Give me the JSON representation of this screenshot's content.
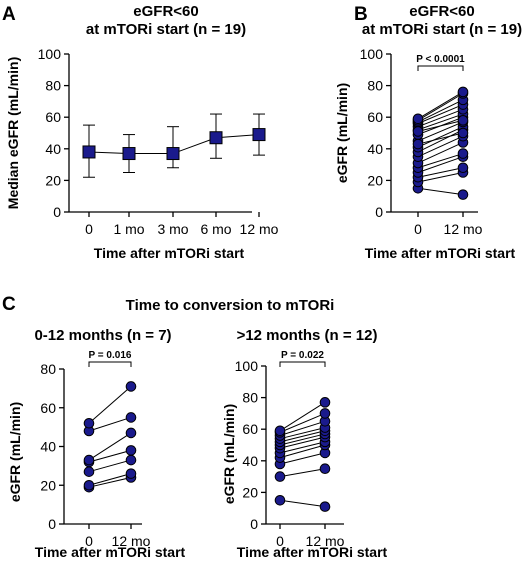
{
  "colors": {
    "marker": "#1a1a8c",
    "line": "#000000"
  },
  "figure": {
    "section_title": "Time to conversion to mTORi"
  },
  "chart_data": [
    {
      "panel": "A",
      "type": "line",
      "title": [
        "eGFR<60",
        "at mTORi start (n = 19)"
      ],
      "xlabel": "Time after mTORi start",
      "ylabel": "Median eGFR (mL/min)",
      "ylim": [
        0,
        100
      ],
      "yticks": [
        0,
        20,
        40,
        60,
        80,
        100
      ],
      "categories": [
        "0",
        "1 mo",
        "3 mo",
        "6 mo",
        "12 mo"
      ],
      "values": [
        38,
        37,
        37,
        47,
        49
      ],
      "error_low": [
        22,
        25,
        28,
        34,
        36
      ],
      "error_high": [
        55,
        49,
        54,
        62,
        62
      ],
      "marker": "square"
    },
    {
      "panel": "B",
      "type": "scatter",
      "title": [
        "eGFR<60",
        "at mTORi start (n = 19)"
      ],
      "xlabel": "Time after mTORi start",
      "ylabel": "eGFR (mL/min)",
      "ylim": [
        0,
        100
      ],
      "yticks": [
        0,
        20,
        40,
        60,
        80,
        100
      ],
      "categories": [
        "0",
        "12 mo"
      ],
      "annotation": "P < 0.0001",
      "pairs": [
        [
          15,
          11
        ],
        [
          19,
          25
        ],
        [
          22,
          28
        ],
        [
          25,
          35
        ],
        [
          28,
          37
        ],
        [
          31,
          44
        ],
        [
          35,
          48
        ],
        [
          38,
          52
        ],
        [
          41,
          54
        ],
        [
          45,
          57
        ],
        [
          49,
          60
        ],
        [
          52,
          62
        ],
        [
          54,
          65
        ],
        [
          56,
          68
        ],
        [
          57,
          71
        ],
        [
          58,
          75
        ],
        [
          59,
          76
        ],
        [
          51,
          58
        ],
        [
          43,
          50
        ]
      ]
    },
    {
      "panel": "C1",
      "type": "scatter",
      "title": "0-12 months (n = 7)",
      "xlabel": "Time after mTORi start",
      "ylabel": "eGFR (mL/min)",
      "ylim": [
        0,
        80
      ],
      "yticks": [
        0,
        20,
        40,
        60,
        80
      ],
      "categories": [
        "0",
        "12 mo"
      ],
      "annotation": "P = 0.016",
      "pairs": [
        [
          19,
          24
        ],
        [
          20,
          26
        ],
        [
          27,
          33
        ],
        [
          32,
          38
        ],
        [
          33,
          47
        ],
        [
          48,
          55
        ],
        [
          52,
          71
        ]
      ]
    },
    {
      "panel": "C2",
      "type": "scatter",
      "title": ">12 months (n = 12)",
      "xlabel": "Time after mTORi start",
      "ylabel": "eGFR (mL/min)",
      "ylim": [
        0,
        100
      ],
      "yticks": [
        0,
        20,
        40,
        60,
        80,
        100
      ],
      "categories": [
        "0",
        "12 mo"
      ],
      "annotation": "P = 0.022",
      "pairs": [
        [
          15,
          11
        ],
        [
          30,
          35
        ],
        [
          38,
          45
        ],
        [
          42,
          50
        ],
        [
          45,
          52
        ],
        [
          48,
          55
        ],
        [
          50,
          57
        ],
        [
          52,
          59
        ],
        [
          54,
          61
        ],
        [
          56,
          65
        ],
        [
          58,
          70
        ],
        [
          59,
          77
        ]
      ]
    }
  ]
}
